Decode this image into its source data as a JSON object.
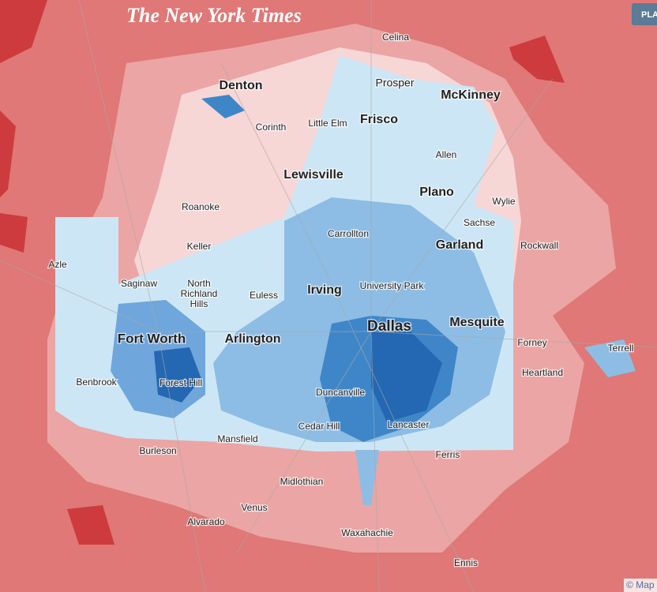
{
  "header": {
    "logo": "The New York Times",
    "button": "PLA"
  },
  "attribution": "© Map",
  "cities": [
    {
      "label": "Celina"
    },
    {
      "label": "Denton"
    },
    {
      "label": "Prosper"
    },
    {
      "label": "McKinney"
    },
    {
      "label": "Corinth"
    },
    {
      "label": "Little Elm"
    },
    {
      "label": "Frisco"
    },
    {
      "label": "Allen"
    },
    {
      "label": "Lewisville"
    },
    {
      "label": "Plano"
    },
    {
      "label": "Wylie"
    },
    {
      "label": "Roanoke"
    },
    {
      "label": "Sachse"
    },
    {
      "label": "Carrollton"
    },
    {
      "label": "Keller"
    },
    {
      "label": "Garland"
    },
    {
      "label": "Rockwall"
    },
    {
      "label": "Azle"
    },
    {
      "label": "Saginaw"
    },
    {
      "label": [
        "North",
        "Richland",
        "Hills"
      ]
    },
    {
      "label": "Euless"
    },
    {
      "label": "Irving"
    },
    {
      "label": "University Park"
    },
    {
      "label": "Dallas"
    },
    {
      "label": "Mesquite"
    },
    {
      "label": "Fort Worth"
    },
    {
      "label": "Arlington"
    },
    {
      "label": "Forney"
    },
    {
      "label": "Terrell"
    },
    {
      "label": "Heartland"
    },
    {
      "label": "Benbrook"
    },
    {
      "label": "Forest Hill"
    },
    {
      "label": "Duncanville"
    },
    {
      "label": "Cedar Hill"
    },
    {
      "label": "Lancaster"
    },
    {
      "label": "Mansfield"
    },
    {
      "label": "Burleson"
    },
    {
      "label": "Ferris"
    },
    {
      "label": "Midlothian"
    },
    {
      "label": "Venus"
    },
    {
      "label": "Alvarado"
    },
    {
      "label": "Waxahachie"
    },
    {
      "label": "Ennis"
    }
  ]
}
